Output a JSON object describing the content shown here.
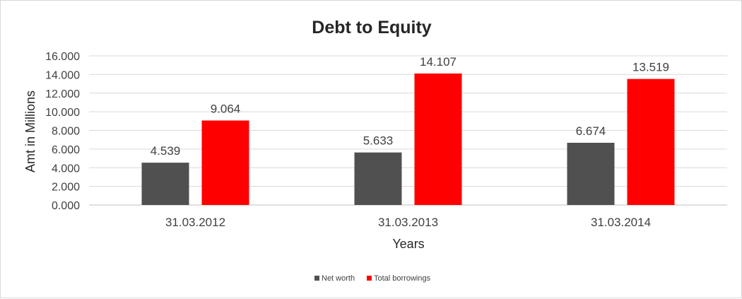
{
  "chart_data": {
    "type": "bar",
    "title": "Debt to Equity",
    "xlabel": "Years",
    "ylabel": "Amt in Millions",
    "categories": [
      "31.03.2012",
      "31.03.2013",
      "31.03.2014"
    ],
    "series": [
      {
        "name": "Net worth",
        "values": [
          4.539,
          5.633,
          6.674
        ],
        "color": "#505050"
      },
      {
        "name": "Total borrowings",
        "values": [
          9.064,
          14.107,
          13.519
        ],
        "color": "#ff0000"
      }
    ],
    "ylim": [
      0,
      16
    ],
    "yticks": [
      "0.000",
      "2.000",
      "4.000",
      "6.000",
      "8.000",
      "10.000",
      "12.000",
      "14.000",
      "16.000"
    ],
    "data_labels": [
      [
        "4.539",
        "5.633",
        "6.674"
      ],
      [
        "9.064",
        "14.107",
        "13.519"
      ]
    ],
    "grid": true,
    "legend_position": "bottom"
  }
}
